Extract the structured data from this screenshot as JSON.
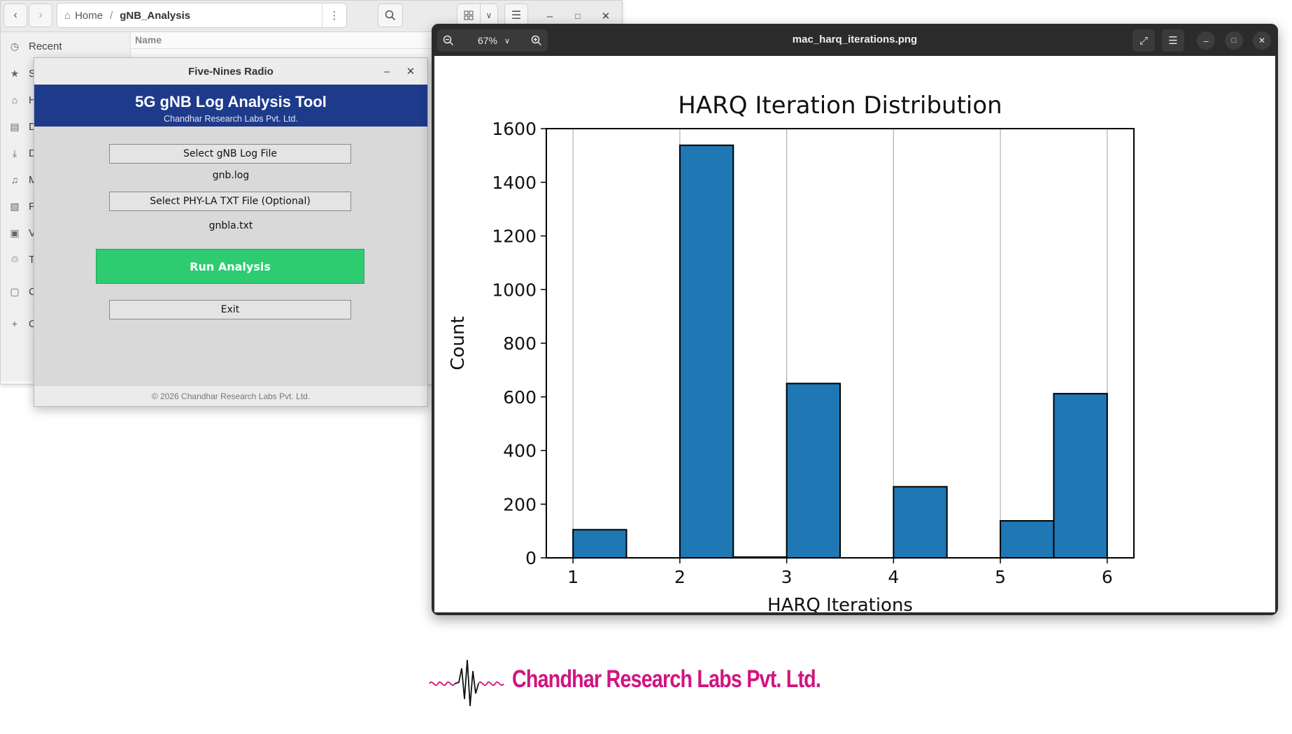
{
  "file_manager": {
    "breadcrumb": {
      "home": "Home",
      "current": "gNB_Analysis"
    },
    "icons": {
      "back": "chevron-left-icon",
      "forward": "chevron-right-icon",
      "home": "home-icon",
      "menu": "kebab-icon",
      "search": "search-icon",
      "grid": "grid-view-icon",
      "sort": "chevron-down-icon",
      "list": "list-view-icon"
    },
    "sidebar": [
      {
        "label": "Recent",
        "icon": "clock-icon"
      },
      {
        "label": "St",
        "icon": "star-icon"
      },
      {
        "label": "Ho",
        "icon": "home-icon"
      },
      {
        "label": "Do",
        "icon": "document-icon"
      },
      {
        "label": "Do",
        "icon": "download-icon"
      },
      {
        "label": "M",
        "icon": "music-icon"
      },
      {
        "label": "Pi",
        "icon": "picture-icon"
      },
      {
        "label": "Vi",
        "icon": "video-icon"
      },
      {
        "label": "Tr",
        "icon": "trash-icon"
      },
      {
        "label": "CF",
        "icon": "drive-icon"
      },
      {
        "label": "Ot",
        "icon": "plus-icon"
      }
    ],
    "column_header": "Name"
  },
  "tool": {
    "window_title": "Five-Nines Radio",
    "banner_title": "5G gNB Log Analysis Tool",
    "banner_subtitle": "Chandhar Research Labs Pvt. Ltd.",
    "select_log_button": "Select gNB Log File",
    "log_file": "gnb.log",
    "select_phy_button": "Select PHY-LA TXT File (Optional)",
    "phy_file": "gnbla.txt",
    "run_button": "Run Analysis",
    "exit_button": "Exit",
    "footer": "© 2026 Chandhar Research Labs Pvt. Ltd.",
    "colors": {
      "banner": "#1e3a8a",
      "run": "#2ecc71"
    }
  },
  "viewer": {
    "title": "mac_harq_iterations.png",
    "zoom": "67%"
  },
  "chart_data": {
    "type": "bar",
    "title": "HARQ Iteration Distribution",
    "xlabel": "HARQ Iterations",
    "ylabel": "Count",
    "xlim": [
      0.75,
      6.25
    ],
    "ylim": [
      0,
      1600
    ],
    "xticks": [
      1,
      2,
      3,
      4,
      5,
      6
    ],
    "yticks": [
      0,
      200,
      400,
      600,
      800,
      1000,
      1200,
      1400,
      1600
    ],
    "grid": "x",
    "bins": [
      {
        "x0": 1.0,
        "x1": 1.5,
        "value": 105
      },
      {
        "x0": 1.5,
        "x1": 2.0,
        "value": 0
      },
      {
        "x0": 2.0,
        "x1": 2.5,
        "value": 1538
      },
      {
        "x0": 2.5,
        "x1": 3.0,
        "value": 3
      },
      {
        "x0": 3.0,
        "x1": 3.5,
        "value": 650
      },
      {
        "x0": 3.5,
        "x1": 4.0,
        "value": 0
      },
      {
        "x0": 4.0,
        "x1": 4.5,
        "value": 265
      },
      {
        "x0": 4.5,
        "x1": 5.0,
        "value": 0
      },
      {
        "x0": 5.0,
        "x1": 5.5,
        "value": 138
      },
      {
        "x0": 5.5,
        "x1": 6.0,
        "value": 612
      }
    ],
    "bar_color": "#1f77b4"
  },
  "logo": {
    "text": "Chandhar Research Labs Pvt. Ltd.",
    "color": "#d0157f"
  }
}
